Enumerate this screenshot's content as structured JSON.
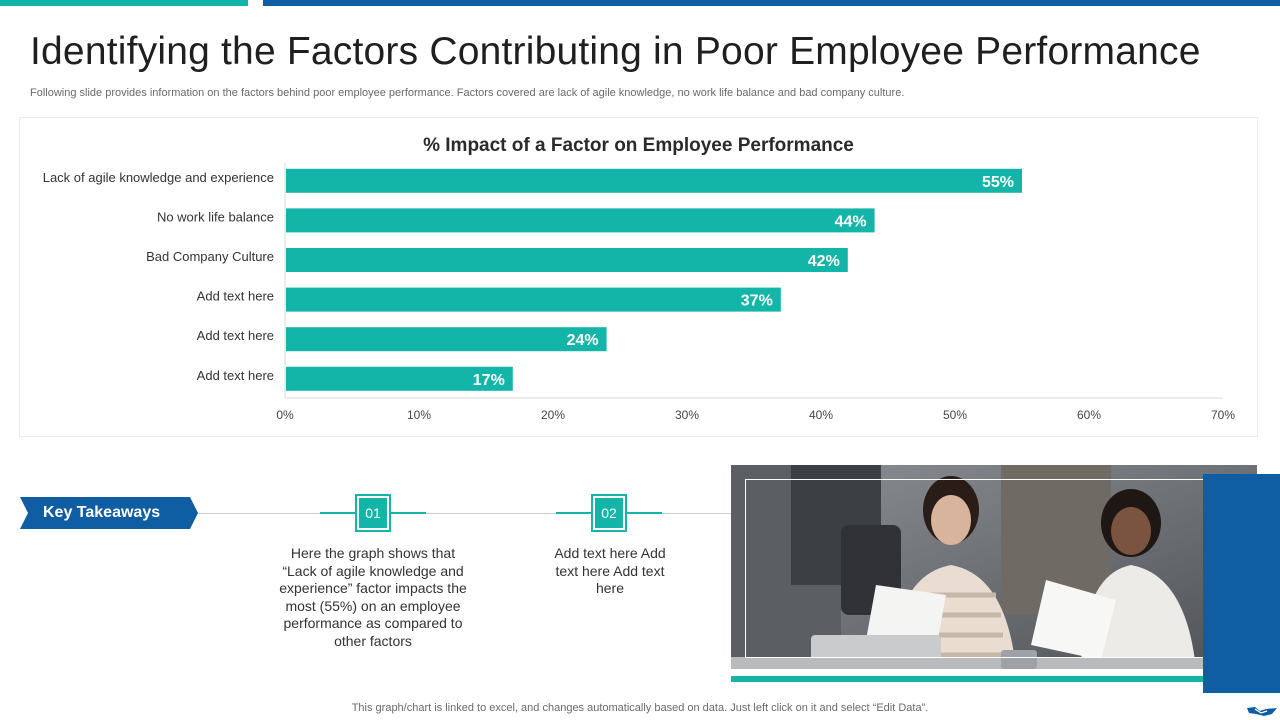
{
  "header": {
    "title": "Identifying the Factors Contributing in Poor Employee Performance",
    "subtitle": "Following slide provides information on the factors behind poor employee performance. Factors covered are lack of agile knowledge, no work life balance and bad company culture."
  },
  "chart_data": {
    "type": "bar",
    "orientation": "horizontal",
    "title": "% Impact of a Factor on Employee Performance",
    "categories": [
      "Lack of agile knowledge and experience",
      "No work life balance",
      "Bad Company Culture",
      "Add text here",
      "Add text here",
      "Add text here"
    ],
    "values": [
      55,
      44,
      42,
      37,
      24,
      17
    ],
    "value_suffix": "%",
    "xlim": [
      0,
      70
    ],
    "xticks": [
      0,
      10,
      20,
      30,
      40,
      50,
      60,
      70
    ],
    "xtick_labels": [
      "0%",
      "10%",
      "20%",
      "30%",
      "40%",
      "50%",
      "60%",
      "70%"
    ],
    "bar_color": "#13b5a8",
    "grid": false,
    "legend": "none"
  },
  "takeaways": {
    "label": "Key Takeaways",
    "items": [
      {
        "number": "01",
        "text": "Here the graph shows that “Lack of agile knowledge and experience” factor impacts the most (55%) on an employee performance as compared to other factors"
      },
      {
        "number": "02",
        "text": "Add text here Add text here Add text here"
      }
    ]
  },
  "footnote": "This graph/chart is linked to excel,  and changes automatically based on data. Just left click on it and select “Edit Data”.",
  "colors": {
    "teal": "#13b5a8",
    "blue": "#0f5ea3"
  },
  "icons": {
    "corner_logo": "handshake-icon"
  }
}
